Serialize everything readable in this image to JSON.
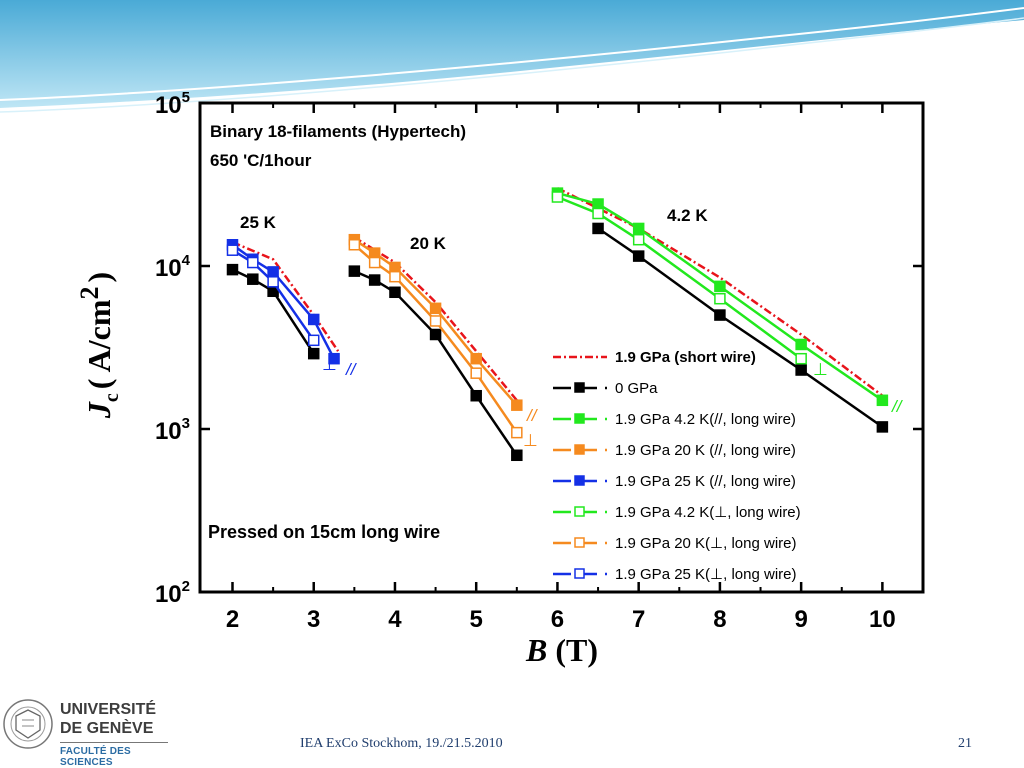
{
  "slide": {
    "footer": "IEA ExCo Stockhom, 19./21.5.2010",
    "page_number": "21",
    "logo_line1": "UNIVERSITÉ",
    "logo_line2": "DE GENÈVE",
    "logo_sub": "FACULTÉ DES SCIENCES",
    "header_colors": [
      "#5fb8de",
      "#a6dcf0",
      "#ffffff"
    ]
  },
  "chart_data": {
    "type": "line",
    "xlabel": "B",
    "xunit": "(T)",
    "ylabel_main": "J",
    "ylabel_sub": "c",
    "ylabel_unit": "( A/cm",
    "ylabel_exp": "2",
    "ylabel_close": ")",
    "xlim": [
      1.6,
      10.5
    ],
    "ylim": [
      100,
      100000
    ],
    "yscale": "log",
    "xticks": [
      "2",
      "3",
      "4",
      "5",
      "6",
      "7",
      "8",
      "9",
      "10"
    ],
    "yticks": [
      {
        "base": "10",
        "exp": "2",
        "value": 100
      },
      {
        "base": "10",
        "exp": "3",
        "value": 1000
      },
      {
        "base": "10",
        "exp": "4",
        "value": 10000
      },
      {
        "base": "10",
        "exp": "5",
        "value": 100000
      }
    ],
    "annotations": {
      "title1": "Binary 18-filaments (Hypertech)",
      "title2": "650 'C/1hour",
      "pressed": "Pressed on 15cm long wire",
      "t25": "25 K",
      "t20": "20 K",
      "t42": "4.2 K",
      "par": "//",
      "perp": "⊥"
    },
    "series": [
      {
        "name": "1.9 GPa (short wire)",
        "color": "#e8141b",
        "marker": "none",
        "dash": "8,3,2,3",
        "groups": [
          {
            "x": [
              2,
              2.5,
              3.0,
              3.3
            ],
            "y": [
              14000,
              11000,
              5000,
              3000
            ]
          },
          {
            "x": [
              3.5,
              4.0,
              4.5,
              5.0,
              5.5
            ],
            "y": [
              15000,
              10500,
              6000,
              3000,
              1500
            ]
          },
          {
            "x": [
              6,
              7,
              8,
              9,
              10
            ],
            "y": [
              30000,
              17000,
              8500,
              3800,
              1600
            ]
          }
        ]
      },
      {
        "name": "0 GPa",
        "color": "#000000",
        "marker": "filled",
        "groups": [
          {
            "x": [
              2,
              2.25,
              2.5,
              3.0
            ],
            "y": [
              9500,
              8300,
              7000,
              2900
            ]
          },
          {
            "x": [
              3.5,
              3.75,
              4.0,
              4.5,
              5.0,
              5.5
            ],
            "y": [
              9300,
              8200,
              6900,
              3800,
              1600,
              690
            ]
          },
          {
            "x": [
              6.5,
              7,
              8,
              9,
              10
            ],
            "y": [
              17000,
              11500,
              5000,
              2300,
              1030
            ]
          }
        ]
      },
      {
        "name": "1.9 GPa 4.2 K(//, long wire)",
        "color": "#22e81e",
        "marker": "filled",
        "groups": [
          {
            "x": [
              6,
              6.5,
              7,
              8,
              9,
              10
            ],
            "y": [
              28000,
              24000,
              17000,
              7500,
              3300,
              1500
            ]
          }
        ]
      },
      {
        "name": "1.9 GPa 20 K (//, long wire)",
        "color": "#f58a1f",
        "marker": "filled",
        "groups": [
          {
            "x": [
              3.5,
              3.75,
              4.0,
              4.5,
              5.0,
              5.5
            ],
            "y": [
              14500,
              12000,
              9800,
              5500,
              2700,
              1400
            ]
          }
        ]
      },
      {
        "name": "1.9 GPa 25 K (//, long wire)",
        "color": "#1430e6",
        "marker": "filled",
        "groups": [
          {
            "x": [
              2,
              2.25,
              2.5,
              3.0,
              3.25
            ],
            "y": [
              13500,
              11000,
              9200,
              4700,
              2700
            ]
          }
        ]
      },
      {
        "name": "1.9 GPa 4.2 K(⊥, long wire)",
        "color": "#22e81e",
        "marker": "open",
        "groups": [
          {
            "x": [
              6,
              6.5,
              7,
              8,
              9
            ],
            "y": [
              26500,
              21000,
              14500,
              6300,
              2700
            ]
          }
        ]
      },
      {
        "name": "1.9 GPa 20 K(⊥, long wire)",
        "color": "#f58a1f",
        "marker": "open",
        "groups": [
          {
            "x": [
              3.5,
              3.75,
              4.0,
              4.5,
              5.0,
              5.5
            ],
            "y": [
              13500,
              10500,
              8600,
              4600,
              2200,
              950
            ]
          }
        ]
      },
      {
        "name": "1.9 GPa 25 K(⊥, long wire)",
        "color": "#1430e6",
        "marker": "open",
        "groups": [
          {
            "x": [
              2,
              2.25,
              2.5,
              3.0
            ],
            "y": [
              12500,
              10500,
              8000,
              3500
            ]
          }
        ]
      }
    ]
  }
}
